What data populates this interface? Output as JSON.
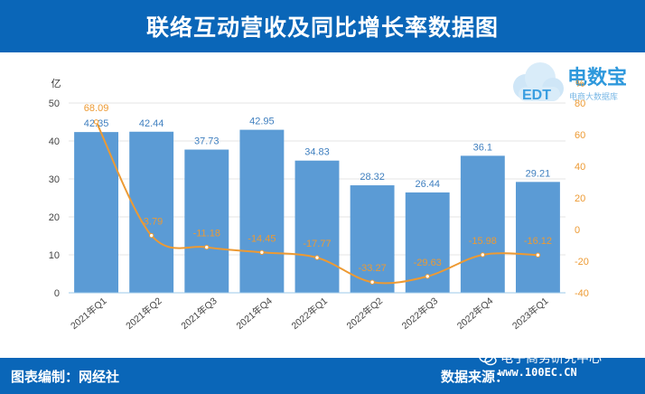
{
  "header": {
    "title": "联络互动营收及同比增长率数据图"
  },
  "footer": {
    "editor": "图表编制：网经社",
    "source": "数据来源："
  },
  "watermark": {
    "name": "电子商务研究中心",
    "site": "www.100EC.CN"
  },
  "logo": {
    "brand": "电数宝",
    "sub": "电商大数据库",
    "mark": "EDT"
  },
  "chart_data": {
    "type": "bar",
    "categories": [
      "2021年Q1",
      "2021年Q2",
      "2021年Q3",
      "2021年Q4",
      "2022年Q1",
      "2022年Q2",
      "2022年Q3",
      "2022年Q4",
      "2023年Q1"
    ],
    "series": [
      {
        "name": "",
        "type": "bar",
        "axis": "left",
        "values": [
          42.35,
          42.44,
          37.73,
          42.95,
          34.83,
          28.32,
          26.44,
          36.1,
          29.21
        ],
        "color": "#5b9bd5"
      },
      {
        "name": "",
        "type": "line",
        "axis": "right",
        "values": [
          68.09,
          -3.79,
          -11.18,
          -14.45,
          -17.77,
          -33.27,
          -29.63,
          -15.98,
          -16.12
        ],
        "color": "#ed9a33"
      }
    ],
    "y_left": {
      "unit": "亿",
      "min": 0,
      "max": 50,
      "ticks": [
        0,
        10,
        20,
        30,
        40,
        50
      ]
    },
    "y_right": {
      "unit": "%",
      "min": -40,
      "max": 80,
      "ticks": [
        -40,
        -20,
        0,
        20,
        40,
        60,
        80
      ]
    },
    "grid": true,
    "legend": "none"
  }
}
